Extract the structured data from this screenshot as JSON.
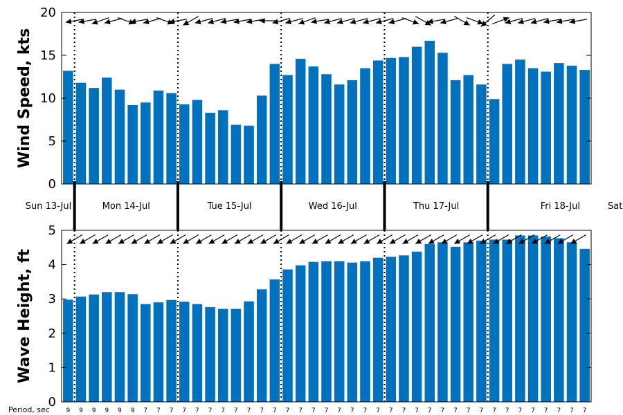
{
  "chart_data": [
    {
      "type": "bar",
      "ylabel": "Wind Speed, kts",
      "ylim": [
        0,
        20
      ],
      "yticks": [
        0,
        5,
        10,
        15,
        20
      ],
      "bar_color": "#0072BD",
      "values": [
        13.2,
        11.8,
        11.2,
        12.4,
        11.0,
        9.2,
        9.5,
        10.9,
        10.6,
        9.3,
        9.8,
        8.3,
        8.6,
        6.9,
        6.8,
        10.3,
        14.0,
        12.7,
        14.6,
        13.7,
        12.8,
        11.6,
        12.1,
        13.5,
        14.4,
        14.7,
        14.8,
        16.0,
        16.7,
        15.3,
        12.1,
        12.7,
        11.6,
        9.9,
        14.0,
        14.5,
        13.5,
        13.1,
        14.1,
        13.8,
        13.3
      ],
      "direction_arrows_deg": [
        null,
        80,
        80,
        70,
        75,
        290,
        80,
        75,
        290,
        80,
        60,
        75,
        75,
        80,
        80,
        80,
        90,
        75,
        75,
        70,
        80,
        75,
        75,
        75,
        75,
        75,
        75,
        290,
        300,
        80,
        75,
        300,
        290,
        50,
        250,
        75,
        75,
        75,
        80,
        80,
        80
      ]
    },
    {
      "type": "bar",
      "ylabel": "Wave Height, ft",
      "ylim": [
        0,
        5
      ],
      "yticks": [
        0,
        1,
        2,
        3,
        4,
        5
      ],
      "bar_color": "#0072BD",
      "values": [
        2.98,
        3.07,
        3.13,
        3.2,
        3.2,
        3.14,
        2.85,
        2.9,
        2.97,
        2.92,
        2.85,
        2.76,
        2.71,
        2.71,
        2.93,
        3.28,
        3.57,
        3.86,
        3.98,
        4.08,
        4.1,
        4.1,
        4.06,
        4.1,
        4.2,
        4.23,
        4.27,
        4.38,
        4.6,
        4.65,
        4.52,
        4.65,
        4.7,
        4.73,
        4.73,
        4.85,
        4.85,
        4.82,
        4.77,
        4.65,
        4.46
      ],
      "direction_arrows_deg": [
        null,
        60,
        60,
        60,
        60,
        60,
        60,
        60,
        60,
        60,
        60,
        60,
        60,
        60,
        60,
        60,
        60,
        60,
        60,
        60,
        60,
        60,
        60,
        60,
        60,
        60,
        60,
        60,
        60,
        60,
        60,
        60,
        60,
        60,
        60,
        60,
        60,
        60,
        60,
        60,
        60
      ]
    }
  ],
  "day_labels": [
    "Sun 13-Jul",
    "Mon 14-Jul",
    "Tue 15-Jul",
    "Wed 16-Jul",
    "Thu 17-Jul",
    "Fri 18-Jul",
    "Sat"
  ],
  "day_boundaries_bar_index": [
    1,
    9,
    17,
    25,
    33
  ],
  "period_label": "Period, sec",
  "periods": [
    9,
    9,
    9,
    9,
    9,
    9,
    7,
    7,
    7,
    7,
    7,
    7,
    7,
    7,
    7,
    7,
    7,
    7,
    7,
    7,
    7,
    7,
    7,
    7,
    7,
    7,
    7,
    7,
    7,
    7,
    7,
    7,
    7,
    7,
    7,
    7,
    7,
    7,
    7,
    7,
    7
  ]
}
